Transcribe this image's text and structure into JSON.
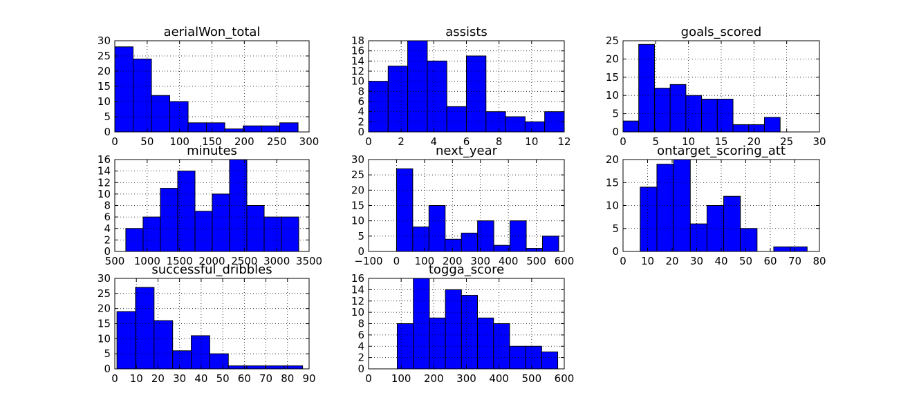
{
  "chart_data": [
    {
      "type": "bar",
      "title": "aerialWon_total",
      "xlim": [
        0,
        300
      ],
      "ylim": [
        0,
        30
      ],
      "xticks": [
        0,
        50,
        100,
        150,
        200,
        250,
        300
      ],
      "yticks": [
        0,
        5,
        10,
        15,
        20,
        25,
        30
      ],
      "bins": [
        [
          0,
          28.3,
          28
        ],
        [
          28.3,
          56.6,
          24
        ],
        [
          56.6,
          84.9,
          12
        ],
        [
          84.9,
          113.2,
          10
        ],
        [
          113.2,
          141.5,
          3
        ],
        [
          141.5,
          169.8,
          3
        ],
        [
          169.8,
          198.1,
          1
        ],
        [
          198.1,
          226.4,
          2
        ],
        [
          226.4,
          254.7,
          2
        ],
        [
          254.7,
          283,
          3
        ]
      ],
      "bar_color": "#0000ff",
      "grid": true
    },
    {
      "type": "bar",
      "title": "assists",
      "xlim": [
        0,
        12
      ],
      "ylim": [
        0,
        18
      ],
      "xticks": [
        0,
        2,
        4,
        6,
        8,
        10,
        12
      ],
      "yticks": [
        0,
        2,
        4,
        6,
        8,
        10,
        12,
        14,
        16,
        18
      ],
      "bins": [
        [
          0,
          1.2,
          10
        ],
        [
          1.2,
          2.4,
          13
        ],
        [
          2.4,
          3.6,
          18
        ],
        [
          3.6,
          4.8,
          14
        ],
        [
          4.8,
          6.0,
          5
        ],
        [
          6.0,
          7.2,
          15
        ],
        [
          7.2,
          8.4,
          4
        ],
        [
          8.4,
          9.6,
          3
        ],
        [
          9.6,
          10.8,
          2
        ],
        [
          10.8,
          12,
          4
        ]
      ],
      "bar_color": "#0000ff",
      "grid": true
    },
    {
      "type": "bar",
      "title": "goals_scored",
      "xlim": [
        0,
        30
      ],
      "ylim": [
        0,
        25
      ],
      "xticks": [
        0,
        5,
        10,
        15,
        20,
        25,
        30
      ],
      "yticks": [
        0,
        5,
        10,
        15,
        20,
        25
      ],
      "bins": [
        [
          0,
          2.4,
          3
        ],
        [
          2.4,
          4.8,
          24
        ],
        [
          4.8,
          7.2,
          12
        ],
        [
          7.2,
          9.6,
          13
        ],
        [
          9.6,
          12.0,
          10
        ],
        [
          12.0,
          14.4,
          9
        ],
        [
          14.4,
          16.8,
          9
        ],
        [
          16.8,
          19.2,
          2
        ],
        [
          19.2,
          21.6,
          2
        ],
        [
          21.6,
          24.0,
          4
        ]
      ],
      "bar_color": "#0000ff",
      "grid": true
    },
    {
      "type": "bar",
      "title": "minutes",
      "xlim": [
        500,
        3500
      ],
      "ylim": [
        0,
        16
      ],
      "xticks": [
        500,
        1000,
        1500,
        2000,
        2500,
        3000,
        3500
      ],
      "yticks": [
        0,
        2,
        4,
        6,
        8,
        10,
        12,
        14,
        16
      ],
      "bins": [
        [
          670,
          937,
          4
        ],
        [
          937,
          1204,
          6
        ],
        [
          1204,
          1471,
          11
        ],
        [
          1471,
          1738,
          14
        ],
        [
          1738,
          2005,
          7
        ],
        [
          2005,
          2272,
          10
        ],
        [
          2272,
          2539,
          16
        ],
        [
          2539,
          2806,
          8
        ],
        [
          2806,
          3073,
          6
        ],
        [
          3073,
          3340,
          6
        ]
      ],
      "bar_color": "#0000ff",
      "grid": true
    },
    {
      "type": "bar",
      "title": "next_year",
      "xlim": [
        -100,
        600
      ],
      "ylim": [
        0,
        30
      ],
      "xticks": [
        -100,
        0,
        100,
        200,
        300,
        400,
        500,
        600
      ],
      "xtick_labels": [
        "−100",
        "0",
        "100",
        "200",
        "300",
        "400",
        "500",
        "600"
      ],
      "yticks": [
        0,
        5,
        10,
        15,
        20,
        25,
        30
      ],
      "bins": [
        [
          0,
          58,
          27
        ],
        [
          58,
          116,
          8
        ],
        [
          116,
          174,
          15
        ],
        [
          174,
          232,
          4
        ],
        [
          232,
          290,
          6
        ],
        [
          290,
          348,
          10
        ],
        [
          348,
          406,
          2
        ],
        [
          406,
          464,
          10
        ],
        [
          464,
          522,
          1
        ],
        [
          522,
          580,
          5
        ]
      ],
      "bar_color": "#0000ff",
      "grid": true
    },
    {
      "type": "bar",
      "title": "ontarget_scoring_att",
      "xlim": [
        0,
        80
      ],
      "ylim": [
        0,
        20
      ],
      "xticks": [
        0,
        10,
        20,
        30,
        40,
        50,
        60,
        70,
        80
      ],
      "yticks": [
        0,
        5,
        10,
        15,
        20
      ],
      "bins": [
        [
          7,
          13.8,
          14
        ],
        [
          13.8,
          20.6,
          19
        ],
        [
          20.6,
          27.4,
          20
        ],
        [
          27.4,
          34.2,
          6
        ],
        [
          34.2,
          41.0,
          10
        ],
        [
          41.0,
          47.8,
          12
        ],
        [
          47.8,
          54.6,
          5
        ],
        [
          54.6,
          61.4,
          0
        ],
        [
          61.4,
          68.2,
          1
        ],
        [
          68.2,
          75,
          1
        ]
      ],
      "bar_color": "#0000ff",
      "grid": true
    },
    {
      "type": "bar",
      "title": "successful_dribbles",
      "xlim": [
        0,
        90
      ],
      "ylim": [
        0,
        30
      ],
      "xticks": [
        0,
        10,
        20,
        30,
        40,
        50,
        60,
        70,
        80,
        90
      ],
      "yticks": [
        0,
        5,
        10,
        15,
        20,
        25,
        30
      ],
      "bins": [
        [
          1,
          9.6,
          19
        ],
        [
          9.6,
          18.2,
          27
        ],
        [
          18.2,
          26.8,
          16
        ],
        [
          26.8,
          35.4,
          6
        ],
        [
          35.4,
          44.0,
          11
        ],
        [
          44.0,
          52.6,
          5
        ],
        [
          52.6,
          61.2,
          1
        ],
        [
          61.2,
          69.8,
          1
        ],
        [
          69.8,
          78.4,
          1
        ],
        [
          78.4,
          87,
          1
        ]
      ],
      "bar_color": "#0000ff",
      "grid": true
    },
    {
      "type": "bar",
      "title": "togga_score",
      "xlim": [
        0,
        600
      ],
      "ylim": [
        0,
        16
      ],
      "xticks": [
        0,
        100,
        200,
        300,
        400,
        500,
        600
      ],
      "yticks": [
        0,
        2,
        4,
        6,
        8,
        10,
        12,
        14,
        16
      ],
      "bins": [
        [
          88,
          137.2,
          8
        ],
        [
          137.2,
          186.4,
          16
        ],
        [
          186.4,
          235.6,
          9
        ],
        [
          235.6,
          284.8,
          14
        ],
        [
          284.8,
          334.0,
          13
        ],
        [
          334.0,
          383.2,
          9
        ],
        [
          383.2,
          432.4,
          8
        ],
        [
          432.4,
          481.6,
          4
        ],
        [
          481.6,
          530.8,
          4
        ],
        [
          530.8,
          580,
          3
        ]
      ],
      "bar_color": "#0000ff",
      "grid": true
    }
  ]
}
